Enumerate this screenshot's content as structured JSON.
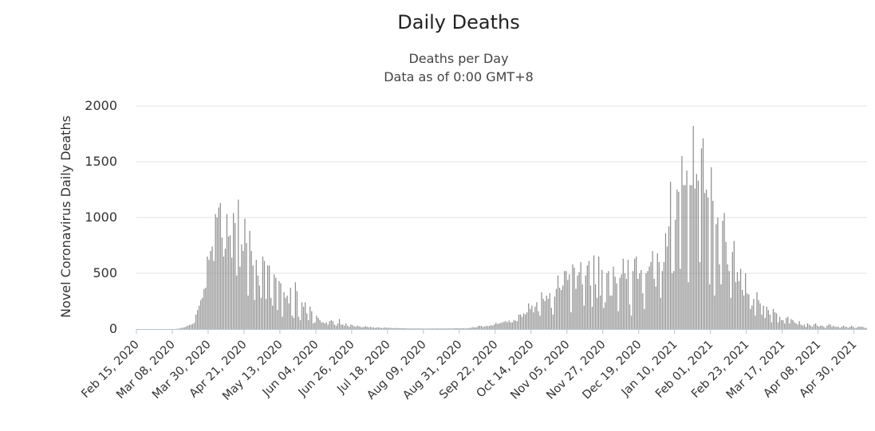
{
  "chart_data": {
    "type": "bar",
    "title": "Daily Deaths",
    "subtitle": [
      "Deaths per Day",
      "Data as of 0:00 GMT+8"
    ],
    "ylabel": "Novel Coronavirus Daily Deaths",
    "xlabel": "",
    "ylim": [
      0,
      2000
    ],
    "yticks": [
      0,
      500,
      1000,
      1500,
      2000
    ],
    "grid": true,
    "legend": "none",
    "bar_color": "#909090",
    "x_start": "2020-02-15",
    "x_end": "2021-05-08",
    "xtick_labels": [
      "Feb 15, 2020",
      "Mar 08, 2020",
      "Mar 30, 2020",
      "Apr 21, 2020",
      "May 13, 2020",
      "Jun 04, 2020",
      "Jun 26, 2020",
      "Jul 18, 2020",
      "Aug 09, 2020",
      "Aug 31, 2020",
      "Sep 22, 2020",
      "Oct 14, 2020",
      "Nov 05, 2020",
      "Nov 27, 2020",
      "Dec 19, 2020",
      "Jan 10, 2021",
      "Feb 01, 2021",
      "Feb 23, 2021",
      "Mar 17, 2021",
      "Apr 08, 2021",
      "Apr 30, 2021"
    ],
    "series": [
      {
        "values": [
          0,
          0,
          0,
          0,
          0,
          0,
          0,
          0,
          0,
          0,
          0,
          0,
          0,
          0,
          0,
          0,
          0,
          0,
          0,
          0,
          0,
          0,
          0,
          0,
          2,
          3,
          5,
          10,
          12,
          15,
          22,
          30,
          35,
          40,
          45,
          55,
          130,
          170,
          210,
          260,
          280,
          360,
          370,
          650,
          620,
          700,
          740,
          610,
          1030,
          1000,
          1090,
          1130,
          820,
          650,
          720,
          1030,
          830,
          840,
          640,
          1040,
          950,
          480,
          1160,
          560,
          760,
          700,
          990,
          770,
          300,
          880,
          700,
          570,
          260,
          620,
          480,
          390,
          280,
          650,
          610,
          270,
          570,
          570,
          280,
          210,
          490,
          460,
          170,
          430,
          410,
          110,
          330,
          280,
          300,
          230,
          370,
          120,
          100,
          420,
          340,
          110,
          80,
          240,
          200,
          240,
          140,
          80,
          200,
          160,
          50,
          60,
          120,
          100,
          80,
          60,
          60,
          50,
          60,
          40,
          70,
          80,
          70,
          40,
          30,
          50,
          90,
          40,
          40,
          30,
          50,
          30,
          20,
          40,
          35,
          25,
          20,
          30,
          25,
          20,
          15,
          20,
          25,
          20,
          15,
          20,
          15,
          15,
          10,
          15,
          15,
          10,
          10,
          10,
          15,
          10,
          12,
          10,
          10,
          8,
          8,
          10,
          8,
          8,
          7,
          8,
          7,
          6,
          6,
          5,
          6,
          5,
          5,
          5,
          5,
          6,
          5,
          5,
          4,
          4,
          5,
          4,
          5,
          5,
          5,
          5,
          6,
          5,
          5,
          6,
          5,
          5,
          6,
          6,
          5,
          5,
          6,
          7,
          8,
          6,
          6,
          8,
          7,
          6,
          6,
          8,
          10,
          12,
          18,
          14,
          15,
          25,
          30,
          28,
          20,
          22,
          30,
          25,
          28,
          35,
          30,
          42,
          55,
          45,
          50,
          55,
          60,
          65,
          70,
          60,
          75,
          60,
          60,
          80,
          75,
          70,
          130,
          130,
          110,
          140,
          130,
          150,
          230,
          180,
          210,
          150,
          200,
          240,
          160,
          120,
          330,
          270,
          250,
          300,
          270,
          320,
          190,
          130,
          290,
          360,
          480,
          370,
          350,
          390,
          520,
          520,
          440,
          490,
          150,
          580,
          550,
          360,
          480,
          510,
          600,
          400,
          210,
          480,
          570,
          610,
          390,
          200,
          660,
          400,
          280,
          650,
          300,
          530,
          190,
          240,
          500,
          520,
          300,
          300,
          560,
          470,
          410,
          160,
          460,
          490,
          630,
          500,
          450,
          620,
          220,
          120,
          520,
          630,
          650,
          450,
          500,
          530,
          320,
          180,
          500,
          520,
          560,
          600,
          700,
          450,
          380,
          680,
          600,
          280,
          520,
          600,
          860,
          740,
          920,
          1320,
          500,
          520,
          980,
          1250,
          1230,
          540,
          1550,
          1290,
          1290,
          1420,
          420,
          1290,
          1290,
          1820,
          1260,
          1390,
          1330,
          600,
          1620,
          1710,
          1220,
          1250,
          1180,
          400,
          1450,
          1150,
          300,
          940,
          1000,
          580,
          400,
          970,
          1040,
          780,
          580,
          520,
          280,
          690,
          790,
          420,
          510,
          430,
          540,
          350,
          300,
          500,
          320,
          310,
          180,
          210,
          270,
          120,
          330,
          260,
          230,
          130,
          210,
          100,
          200,
          170,
          130,
          60,
          180,
          150,
          140,
          60,
          110,
          80,
          80,
          50,
          100,
          110,
          50,
          90,
          80,
          60,
          50,
          40,
          70,
          40,
          30,
          40,
          20,
          50,
          40,
          30,
          20,
          40,
          50,
          30,
          20,
          30,
          30,
          20,
          10,
          30,
          40,
          40,
          20,
          30,
          20,
          20,
          20,
          10,
          20,
          30,
          20,
          20,
          10,
          20,
          30,
          20,
          10,
          10,
          20,
          20,
          20,
          20,
          10,
          10
        ]
      }
    ]
  }
}
